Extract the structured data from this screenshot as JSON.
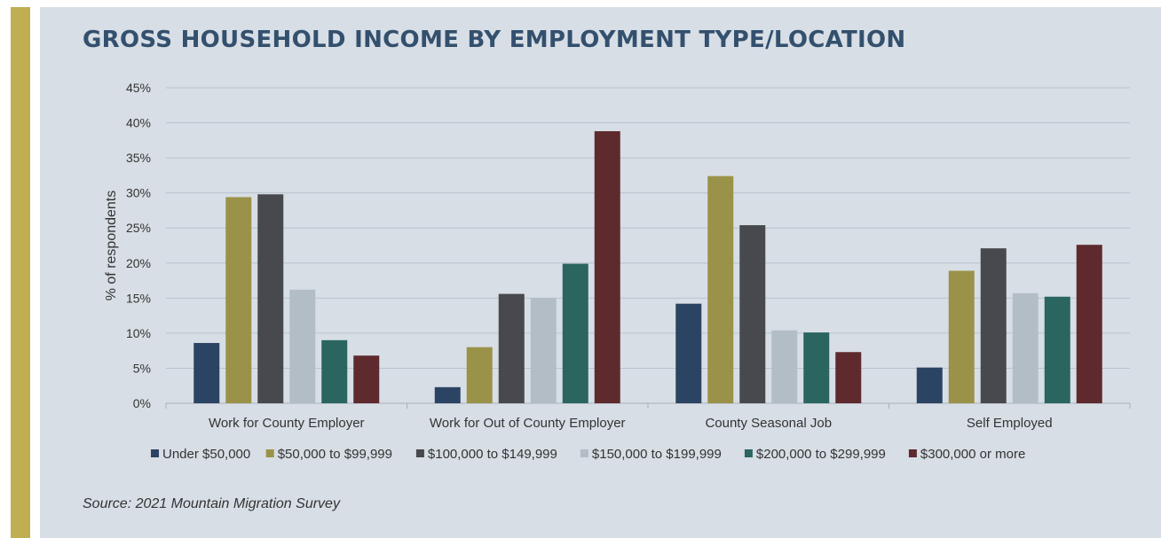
{
  "title": "GROSS HOUSEHOLD INCOME BY EMPLOYMENT TYPE/LOCATION",
  "source": "Source: 2021 Mountain Migration Survey",
  "colors": {
    "accent": "#bfae52",
    "background": "#d7dee5",
    "title": "#33506e"
  },
  "chart_data": {
    "type": "bar",
    "title": "GROSS HOUSEHOLD INCOME BY EMPLOYMENT TYPE/LOCATION",
    "xlabel": "",
    "ylabel": "% of respondents",
    "ylim": [
      0,
      45
    ],
    "yticks": [
      0,
      5,
      10,
      15,
      20,
      25,
      30,
      35,
      40,
      45
    ],
    "ytick_labels": [
      "0%",
      "5%",
      "10%",
      "15%",
      "20%",
      "25%",
      "30%",
      "35%",
      "40%",
      "45%"
    ],
    "grid": true,
    "legend_position": "bottom",
    "categories": [
      "Work for County Employer",
      "Work for Out of County Employer",
      "County Seasonal Job",
      "Self Employed"
    ],
    "series": [
      {
        "name": "Under $50,000",
        "color": "#2c4463",
        "values": [
          8.6,
          2.3,
          14.2,
          5.1
        ]
      },
      {
        "name": "$50,000 to $99,999",
        "color": "#9b9249",
        "values": [
          29.4,
          8.0,
          32.4,
          18.9
        ]
      },
      {
        "name": "$100,000 to $149,999",
        "color": "#48494e",
        "values": [
          29.8,
          15.6,
          25.4,
          22.1
        ]
      },
      {
        "name": "$150,000 to $199,999",
        "color": "#b3bdc6",
        "values": [
          16.2,
          15.0,
          10.4,
          15.7
        ]
      },
      {
        "name": "$200,000 to $299,999",
        "color": "#2a6560",
        "values": [
          9.0,
          19.9,
          10.1,
          15.2
        ]
      },
      {
        "name": "$300,000 or more",
        "color": "#5e2a2e",
        "values": [
          6.8,
          38.8,
          7.3,
          22.6
        ]
      }
    ]
  }
}
